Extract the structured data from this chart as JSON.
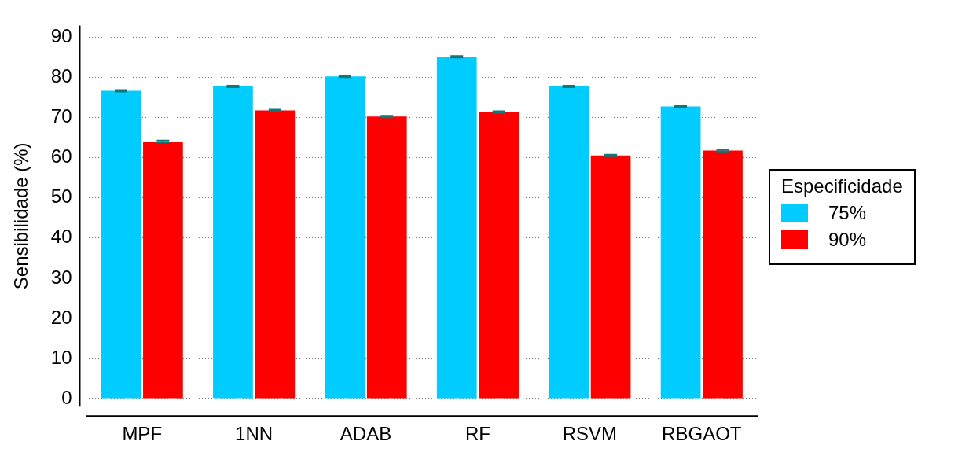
{
  "chart_data": {
    "type": "bar",
    "ylabel": "Sensibilidade (%)",
    "legend_title": "Especificidade",
    "categories": [
      "MPF",
      "1NN",
      "ADAB",
      "RF",
      "RSVM",
      "RBGAOT"
    ],
    "series": [
      {
        "name": "75%",
        "color": "#00ccff",
        "values": [
          76.7,
          77.8,
          80.3,
          85.2,
          77.8,
          72.8
        ],
        "errors": [
          0.2,
          0.2,
          0.2,
          0.2,
          0.2,
          0.2
        ]
      },
      {
        "name": "90%",
        "color": "#ff0000",
        "values": [
          64.1,
          71.8,
          70.3,
          71.4,
          60.6,
          61.8
        ],
        "errors": [
          0.2,
          0.2,
          0.2,
          0.2,
          0.2,
          0.2
        ]
      }
    ],
    "ylim": [
      -2,
      93
    ],
    "yticks": [
      0,
      10,
      20,
      30,
      40,
      50,
      60,
      70,
      80,
      90
    ],
    "grid": "y",
    "legend": "right"
  }
}
